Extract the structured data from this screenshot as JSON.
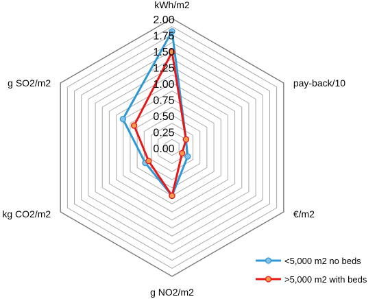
{
  "chart_data": {
    "type": "radar",
    "axes": [
      "kWh/m2",
      "pay-back/10",
      "€/m2",
      "g NO2/m2",
      "kg CO2/m2",
      "g SO2/m2"
    ],
    "rlim": [
      0,
      2.0
    ],
    "tick_labels": [
      "0.00",
      "0.25",
      "0.50",
      "0.75",
      "1.00",
      "1.25",
      "1.50",
      "1.75",
      "2.00"
    ],
    "grid": true,
    "legend_position": "bottom-right",
    "series": [
      {
        "name": "<5,000 m2 no beds",
        "color": "#2e97d6",
        "marker_color": "#86c1e8",
        "values": [
          1.8,
          0.25,
          0.28,
          0.75,
          0.48,
          0.88
        ]
      },
      {
        "name": ">5,000 m2 with beds",
        "color": "#e81717",
        "marker_color": "#f39a4b",
        "values": [
          1.48,
          0.25,
          0.18,
          0.75,
          0.42,
          0.68
        ]
      }
    ]
  }
}
